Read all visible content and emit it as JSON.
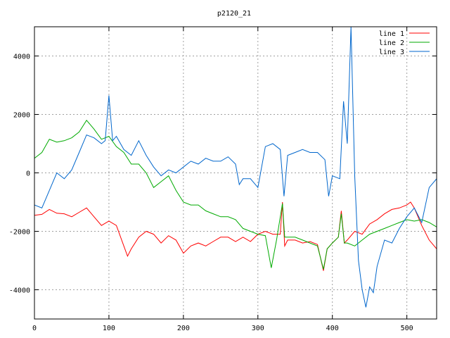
{
  "chart_data": {
    "type": "line",
    "title": "p2120_21",
    "xlabel": "",
    "ylabel": "",
    "xlim": [
      0,
      540
    ],
    "ylim": [
      -5000,
      5000
    ],
    "xticks": [
      0,
      100,
      200,
      300,
      400,
      500
    ],
    "yticks": [
      -4000,
      -2000,
      0,
      2000,
      4000
    ],
    "grid": true,
    "legend": "top-right",
    "series": [
      {
        "name": "line 1",
        "color": "#ff0000",
        "points": [
          [
            0,
            -1450
          ],
          [
            10,
            -1420
          ],
          [
            20,
            -1250
          ],
          [
            30,
            -1380
          ],
          [
            40,
            -1400
          ],
          [
            50,
            -1500
          ],
          [
            60,
            -1350
          ],
          [
            70,
            -1200
          ],
          [
            80,
            -1500
          ],
          [
            90,
            -1800
          ],
          [
            100,
            -1650
          ],
          [
            110,
            -1800
          ],
          [
            120,
            -2500
          ],
          [
            125,
            -2850
          ],
          [
            130,
            -2600
          ],
          [
            140,
            -2200
          ],
          [
            150,
            -2000
          ],
          [
            160,
            -2100
          ],
          [
            170,
            -2400
          ],
          [
            180,
            -2150
          ],
          [
            190,
            -2300
          ],
          [
            200,
            -2750
          ],
          [
            210,
            -2500
          ],
          [
            220,
            -2400
          ],
          [
            230,
            -2500
          ],
          [
            240,
            -2350
          ],
          [
            250,
            -2200
          ],
          [
            260,
            -2200
          ],
          [
            270,
            -2350
          ],
          [
            280,
            -2200
          ],
          [
            290,
            -2350
          ],
          [
            300,
            -2100
          ],
          [
            310,
            -2000
          ],
          [
            320,
            -2100
          ],
          [
            330,
            -2100
          ],
          [
            333,
            -1000
          ],
          [
            336,
            -2500
          ],
          [
            340,
            -2300
          ],
          [
            350,
            -2300
          ],
          [
            360,
            -2400
          ],
          [
            370,
            -2350
          ],
          [
            380,
            -2450
          ],
          [
            388,
            -3350
          ],
          [
            393,
            -2600
          ],
          [
            400,
            -2400
          ],
          [
            408,
            -2200
          ],
          [
            412,
            -1300
          ],
          [
            416,
            -2400
          ],
          [
            420,
            -2300
          ],
          [
            430,
            -2000
          ],
          [
            440,
            -2100
          ],
          [
            450,
            -1750
          ],
          [
            460,
            -1600
          ],
          [
            470,
            -1400
          ],
          [
            480,
            -1250
          ],
          [
            490,
            -1200
          ],
          [
            500,
            -1100
          ],
          [
            505,
            -1000
          ],
          [
            510,
            -1200
          ],
          [
            520,
            -1800
          ],
          [
            530,
            -2300
          ],
          [
            540,
            -2600
          ]
        ]
      },
      {
        "name": "line 2",
        "color": "#00aa00",
        "points": [
          [
            0,
            500
          ],
          [
            10,
            700
          ],
          [
            20,
            1150
          ],
          [
            30,
            1050
          ],
          [
            40,
            1100
          ],
          [
            50,
            1200
          ],
          [
            60,
            1400
          ],
          [
            70,
            1800
          ],
          [
            80,
            1500
          ],
          [
            90,
            1150
          ],
          [
            100,
            1250
          ],
          [
            110,
            900
          ],
          [
            120,
            700
          ],
          [
            130,
            300
          ],
          [
            140,
            300
          ],
          [
            150,
            0
          ],
          [
            160,
            -500
          ],
          [
            170,
            -300
          ],
          [
            180,
            -100
          ],
          [
            190,
            -600
          ],
          [
            200,
            -1000
          ],
          [
            210,
            -1100
          ],
          [
            220,
            -1100
          ],
          [
            230,
            -1300
          ],
          [
            240,
            -1400
          ],
          [
            250,
            -1500
          ],
          [
            260,
            -1500
          ],
          [
            270,
            -1600
          ],
          [
            280,
            -1900
          ],
          [
            290,
            -2000
          ],
          [
            300,
            -2100
          ],
          [
            310,
            -2150
          ],
          [
            318,
            -3250
          ],
          [
            325,
            -2300
          ],
          [
            333,
            -1050
          ],
          [
            336,
            -2200
          ],
          [
            340,
            -2200
          ],
          [
            350,
            -2200
          ],
          [
            360,
            -2300
          ],
          [
            370,
            -2400
          ],
          [
            380,
            -2500
          ],
          [
            388,
            -3300
          ],
          [
            393,
            -2600
          ],
          [
            400,
            -2400
          ],
          [
            408,
            -2200
          ],
          [
            412,
            -1400
          ],
          [
            416,
            -2400
          ],
          [
            420,
            -2400
          ],
          [
            430,
            -2500
          ],
          [
            440,
            -2300
          ],
          [
            450,
            -2100
          ],
          [
            460,
            -2000
          ],
          [
            470,
            -1900
          ],
          [
            480,
            -1800
          ],
          [
            490,
            -1700
          ],
          [
            500,
            -1600
          ],
          [
            510,
            -1650
          ],
          [
            520,
            -1600
          ],
          [
            530,
            -1700
          ],
          [
            540,
            -1850
          ]
        ]
      },
      {
        "name": "line 3",
        "color": "#0066cc",
        "points": [
          [
            0,
            -1100
          ],
          [
            10,
            -1200
          ],
          [
            20,
            -600
          ],
          [
            30,
            0
          ],
          [
            40,
            -200
          ],
          [
            50,
            100
          ],
          [
            60,
            700
          ],
          [
            70,
            1300
          ],
          [
            80,
            1200
          ],
          [
            90,
            1000
          ],
          [
            95,
            1100
          ],
          [
            100,
            2650
          ],
          [
            105,
            1100
          ],
          [
            110,
            1250
          ],
          [
            120,
            800
          ],
          [
            130,
            600
          ],
          [
            140,
            1100
          ],
          [
            150,
            600
          ],
          [
            160,
            200
          ],
          [
            170,
            -100
          ],
          [
            180,
            100
          ],
          [
            190,
            0
          ],
          [
            200,
            200
          ],
          [
            210,
            400
          ],
          [
            220,
            300
          ],
          [
            230,
            500
          ],
          [
            240,
            400
          ],
          [
            250,
            400
          ],
          [
            260,
            550
          ],
          [
            270,
            300
          ],
          [
            275,
            -400
          ],
          [
            280,
            -200
          ],
          [
            290,
            -200
          ],
          [
            300,
            -500
          ],
          [
            310,
            900
          ],
          [
            320,
            1000
          ],
          [
            330,
            800
          ],
          [
            335,
            -800
          ],
          [
            340,
            600
          ],
          [
            350,
            700
          ],
          [
            360,
            800
          ],
          [
            370,
            700
          ],
          [
            380,
            700
          ],
          [
            390,
            450
          ],
          [
            395,
            -800
          ],
          [
            400,
            -100
          ],
          [
            410,
            -200
          ],
          [
            415,
            2450
          ],
          [
            420,
            1000
          ],
          [
            425,
            5000
          ],
          [
            430,
            -100
          ],
          [
            435,
            -3000
          ],
          [
            440,
            -4000
          ],
          [
            445,
            -4600
          ],
          [
            450,
            -3900
          ],
          [
            455,
            -4100
          ],
          [
            460,
            -3200
          ],
          [
            470,
            -2300
          ],
          [
            480,
            -2400
          ],
          [
            490,
            -1900
          ],
          [
            500,
            -1500
          ],
          [
            510,
            -1200
          ],
          [
            520,
            -1700
          ],
          [
            530,
            -500
          ],
          [
            540,
            -200
          ]
        ]
      }
    ]
  }
}
